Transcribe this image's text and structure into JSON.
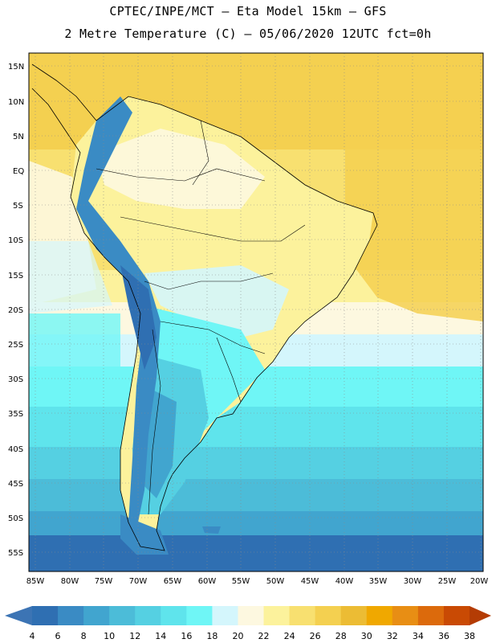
{
  "header": {
    "line1": "CPTEC/INPE/MCT –  Eta Model 15km – GFS",
    "line2": "2 Metre Temperature (C) – 05/06/2020 12UTC fct=0h"
  },
  "lat_labels": [
    "15N",
    "10N",
    "5N",
    "EQ",
    "5S",
    "10S",
    "15S",
    "20S",
    "25S",
    "30S",
    "35S",
    "40S",
    "45S",
    "50S",
    "55S"
  ],
  "lon_labels": [
    "85W",
    "80W",
    "75W",
    "70W",
    "65W",
    "60W",
    "55W",
    "50W",
    "45W",
    "40W",
    "35W",
    "30W",
    "25W",
    "20W"
  ],
  "colorbar": {
    "labels": [
      "4",
      "6",
      "8",
      "10",
      "12",
      "14",
      "16",
      "18",
      "20",
      "22",
      "24",
      "26",
      "28",
      "30",
      "32",
      "34",
      "36",
      "38"
    ],
    "colors": [
      "#3c74b4",
      "#2f6fb2",
      "#3a8bc4",
      "#41a5cf",
      "#4cbcd8",
      "#55d0e2",
      "#5fe4ec",
      "#6ff6f6",
      "#d4f6fc",
      "#fdf8e0",
      "#fcf29c",
      "#f8e070",
      "#f4d050",
      "#ecbc34",
      "#f0a800",
      "#e88e14",
      "#dc6a0c",
      "#c94a04",
      "#b43c04"
    ]
  }
}
